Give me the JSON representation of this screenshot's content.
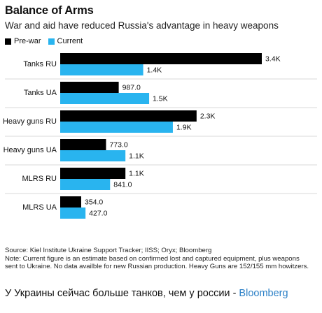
{
  "header": {
    "title": "Balance of Arms",
    "subtitle": "War and aid have reduced Russia's advantage in heavy weapons"
  },
  "legend": {
    "prewar": "Pre-war",
    "current": "Current"
  },
  "colors": {
    "prewar": "#000000",
    "current": "#29b4ef"
  },
  "chart_data": {
    "type": "bar",
    "orientation": "horizontal",
    "title": "Balance of Arms",
    "subtitle": "War and aid have reduced Russia's advantage in heavy weapons",
    "categories": [
      "Tanks RU",
      "Tanks UA",
      "Heavy guns RU",
      "Heavy guns UA",
      "MLRS RU",
      "MLRS UA"
    ],
    "series": [
      {
        "name": "Pre-war",
        "values": [
          3400,
          987,
          2300,
          773,
          1100,
          354
        ],
        "labels": [
          "3.4K",
          "987.0",
          "2.3K",
          "773.0",
          "1.1K",
          "354.0"
        ]
      },
      {
        "name": "Current",
        "values": [
          1400,
          1500,
          1900,
          1100,
          841,
          427
        ],
        "labels": [
          "1.4K",
          "1.5K",
          "1.9K",
          "1.1K",
          "841.0",
          "427.0"
        ]
      }
    ],
    "legend_position": "top-left",
    "grid": false
  },
  "source": {
    "line1": "Source: Kiel Institute Ukraine Support Tracker; IISS; Oryx; Bloomberg",
    "line2": "Note: Current figure is an estimate based on confirmed lost and captured equipment, plus weapons",
    "line3": "sent to Ukraine. No data availble for new Russian production. Heavy Guns are 152/155 mm howitzers."
  },
  "caption": {
    "text": "У Украины сейчас больше танков, чем у россии - ",
    "link": "Bloomberg"
  }
}
